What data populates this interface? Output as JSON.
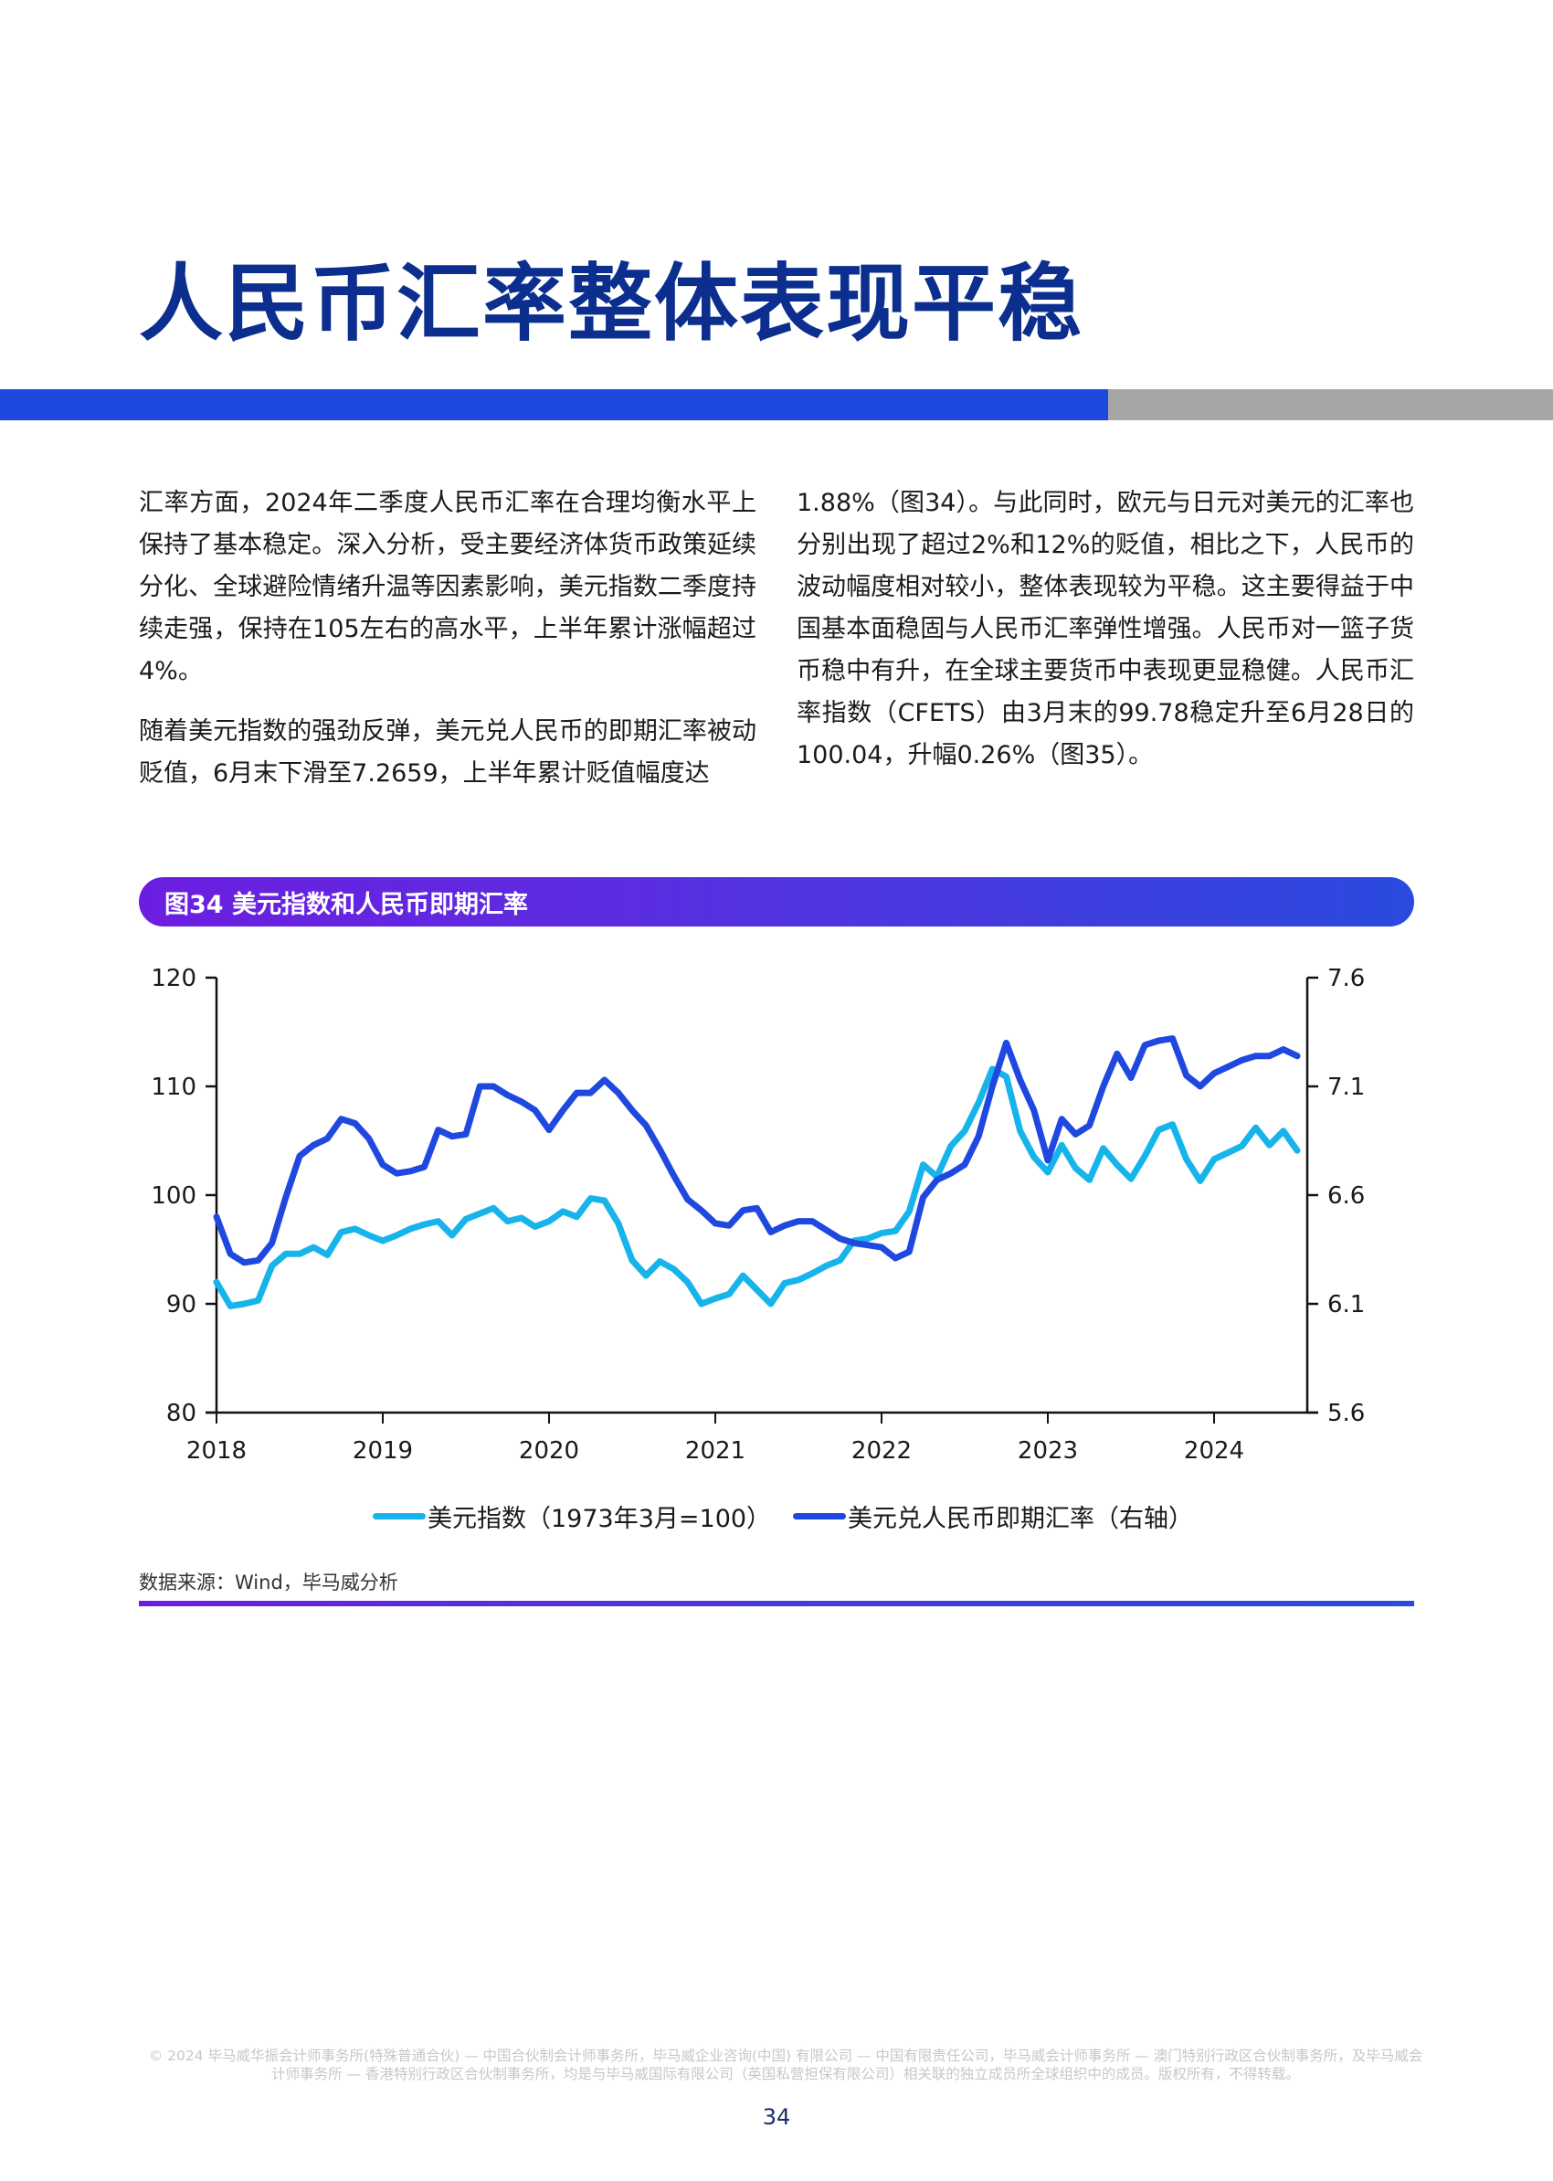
{
  "page": {
    "title": "人民币汇率整体表现平稳",
    "colors": {
      "title": "#0c2f8f",
      "divider_blue": "#1f48e0",
      "divider_gray": "#a6a6a6",
      "usd_index": "#16b4ea",
      "usdcny": "#1f48e0"
    },
    "paragraphs_left": [
      "汇率方面，2024年二季度人民币汇率在合理均衡水平上保持了基本稳定。深入分析，受主要经济体货币政策延续分化、全球避险情绪升温等因素影响，美元指数二季度持续走强，保持在105左右的高水平，上半年累计涨幅超过4%。",
      "随着美元指数的强劲反弹，美元兑人民币的即期汇率被动贬值，6月末下滑至7.2659，上半年累计贬值幅度达"
    ],
    "paragraphs_right": [
      "1.88%（图34）。与此同时，欧元与日元对美元的汇率也分别出现了超过2%和12%的贬值，相比之下，人民币的波动幅度相对较小，整体表现较为平稳。这主要得益于中国基本面稳固与人民币汇率弹性增强。人民币对一篮子货币稳中有升，在全球主要货币中表现更显稳健。人民币汇率指数（CFETS）由3月末的99.78稳定升至6月28日的100.04，升幅0.26%（图35）。"
    ],
    "figure_title": "图34 美元指数和人民币即期汇率",
    "source": "数据来源：Wind，毕马威分析",
    "footer": "© 2024 毕马威华振会计师事务所(特殊普通合伙) — 中国合伙制会计师事务所，毕马威企业咨询(中国) 有限公司 — 中国有限责任公司，毕马威会计师事务所 — 澳门特别行政区合伙制事务所，及毕马威会计师事务所 — 香港特别行政区合伙制事务所，均是与毕马威国际有限公司（英国私营担保有限公司）相关联的独立成员所全球组织中的成员。版权所有，不得转载。",
    "page_number": "34"
  },
  "chart_data": {
    "type": "line",
    "title": "图34 美元指数和人民币即期汇率",
    "xlabel": "",
    "ylabel": "",
    "x_ticks": [
      "2018",
      "2019",
      "2020",
      "2021",
      "2022",
      "2023",
      "2024"
    ],
    "x_range": [
      "2018-01",
      "2024-07"
    ],
    "ylim": [
      80,
      120
    ],
    "y_ticks": [
      "120",
      "110",
      "100",
      "90",
      "80"
    ],
    "y2lim": [
      5.6,
      7.6
    ],
    "y2_ticks": [
      "7.6",
      "7.1",
      "6.6",
      "6.1",
      "5.6"
    ],
    "grid": false,
    "legend_position": "bottom",
    "x": [
      "2018-01",
      "2018-02",
      "2018-03",
      "2018-04",
      "2018-05",
      "2018-06",
      "2018-07",
      "2018-08",
      "2018-09",
      "2018-10",
      "2018-11",
      "2018-12",
      "2019-01",
      "2019-02",
      "2019-03",
      "2019-04",
      "2019-05",
      "2019-06",
      "2019-07",
      "2019-08",
      "2019-09",
      "2019-10",
      "2019-11",
      "2019-12",
      "2020-01",
      "2020-02",
      "2020-03",
      "2020-04",
      "2020-05",
      "2020-06",
      "2020-07",
      "2020-08",
      "2020-09",
      "2020-10",
      "2020-11",
      "2020-12",
      "2021-01",
      "2021-02",
      "2021-03",
      "2021-04",
      "2021-05",
      "2021-06",
      "2021-07",
      "2021-08",
      "2021-09",
      "2021-10",
      "2021-11",
      "2021-12",
      "2022-01",
      "2022-02",
      "2022-03",
      "2022-04",
      "2022-05",
      "2022-06",
      "2022-07",
      "2022-08",
      "2022-09",
      "2022-10",
      "2022-11",
      "2022-12",
      "2023-01",
      "2023-02",
      "2023-03",
      "2023-04",
      "2023-05",
      "2023-06",
      "2023-07",
      "2023-08",
      "2023-09",
      "2023-10",
      "2023-11",
      "2023-12",
      "2024-01",
      "2024-02",
      "2024-03",
      "2024-04",
      "2024-05",
      "2024-06",
      "2024-07"
    ],
    "series": [
      {
        "name": "美元指数（1973年3月=100）",
        "axis": "left",
        "color": "#16b4ea",
        "values": [
          92.0,
          89.8,
          90.0,
          90.3,
          93.5,
          94.6,
          94.6,
          95.2,
          94.5,
          96.6,
          96.9,
          96.3,
          95.8,
          96.3,
          96.9,
          97.3,
          97.6,
          96.3,
          97.8,
          98.3,
          98.8,
          97.6,
          97.9,
          97.1,
          97.6,
          98.5,
          98.0,
          99.7,
          99.5,
          97.4,
          94.0,
          92.6,
          93.9,
          93.2,
          92.0,
          90.0,
          90.5,
          90.9,
          92.6,
          91.3,
          90.0,
          91.9,
          92.2,
          92.8,
          93.5,
          94.0,
          95.8,
          96.0,
          96.5,
          96.7,
          98.5,
          102.8,
          101.7,
          104.5,
          105.9,
          108.5,
          111.6,
          110.9,
          105.9,
          103.5,
          102.1,
          104.6,
          102.5,
          101.4,
          104.3,
          102.8,
          101.5,
          103.6,
          106.0,
          106.5,
          103.3,
          101.3,
          103.3,
          103.9,
          104.5,
          106.2,
          104.6,
          105.9,
          104.1
        ]
      },
      {
        "name": "美元兑人民币即期汇率（右轴）",
        "axis": "right",
        "color": "#1f48e0",
        "values": [
          6.5,
          6.33,
          6.29,
          6.3,
          6.38,
          6.59,
          6.78,
          6.83,
          6.86,
          6.95,
          6.93,
          6.86,
          6.74,
          6.7,
          6.71,
          6.73,
          6.9,
          6.87,
          6.88,
          7.1,
          7.1,
          7.06,
          7.03,
          6.99,
          6.9,
          6.99,
          7.07,
          7.07,
          7.13,
          7.07,
          6.99,
          6.92,
          6.81,
          6.69,
          6.58,
          6.53,
          6.47,
          6.46,
          6.53,
          6.54,
          6.43,
          6.46,
          6.48,
          6.48,
          6.44,
          6.4,
          6.38,
          6.37,
          6.36,
          6.31,
          6.34,
          6.59,
          6.67,
          6.7,
          6.74,
          6.87,
          7.1,
          7.3,
          7.13,
          6.99,
          6.76,
          6.95,
          6.88,
          6.92,
          7.1,
          7.25,
          7.14,
          7.29,
          7.31,
          7.32,
          7.15,
          7.1,
          7.16,
          7.19,
          7.22,
          7.24,
          7.24,
          7.27,
          7.24
        ]
      }
    ]
  },
  "legend": {
    "items": [
      {
        "label": "美元指数（1973年3月=100）",
        "color": "#16b4ea"
      },
      {
        "label": "美元兑人民币即期汇率（右轴）",
        "color": "#1f48e0"
      }
    ]
  }
}
